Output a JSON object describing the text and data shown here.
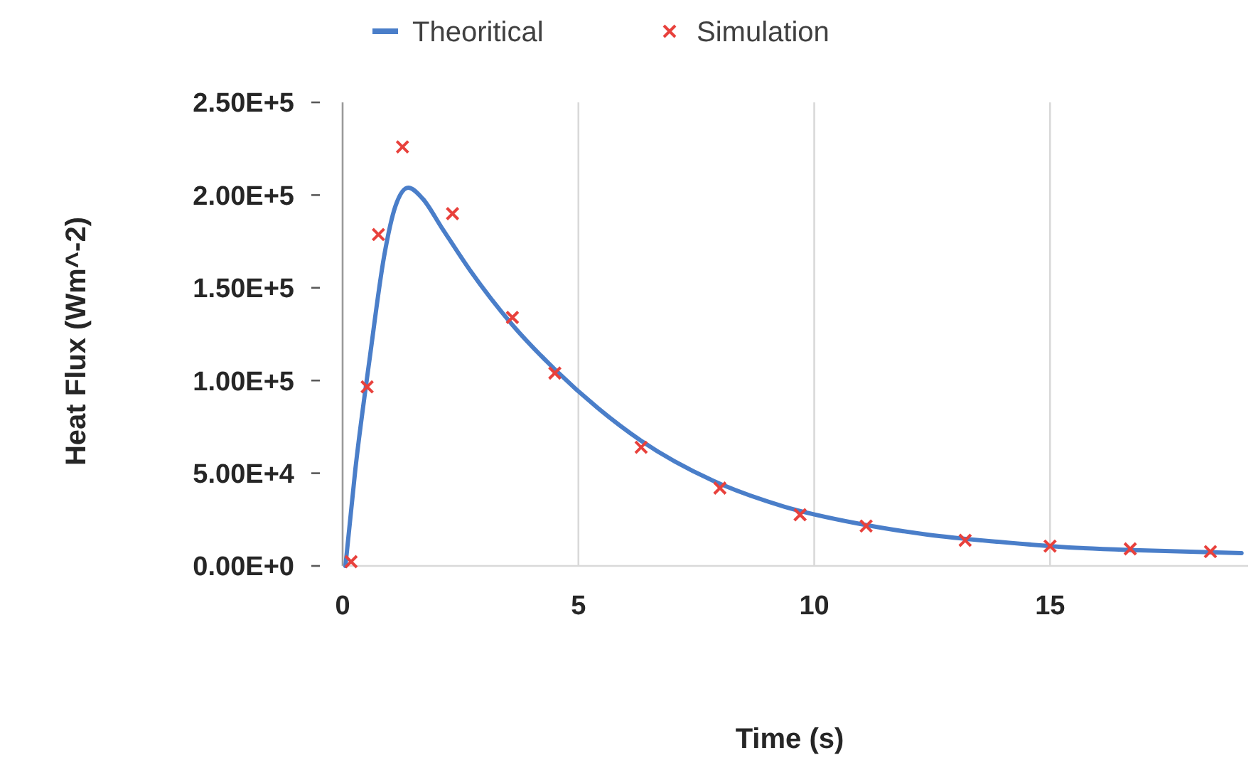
{
  "chart_data": {
    "type": "line",
    "xlabel": "Time (s)",
    "ylabel": "Heat Flux (Wm^-2)",
    "xlim": [
      0,
      19.2
    ],
    "xticks": [
      0,
      5,
      10,
      15
    ],
    "ylim": [
      0,
      250000
    ],
    "yticks": [
      {
        "value": 0,
        "label": "0.00E+0"
      },
      {
        "value": 50000,
        "label": "5.00E+4"
      },
      {
        "value": 100000,
        "label": "1.00E+5"
      },
      {
        "value": 150000,
        "label": "1.50E+5"
      },
      {
        "value": 200000,
        "label": "2.00E+5"
      },
      {
        "value": 250000,
        "label": "2.50E+5"
      }
    ],
    "grid": "x",
    "legend": "top",
    "series": [
      {
        "name": "Theoritical",
        "color": "#4a7ec9",
        "marker": "none",
        "line_style": "solid",
        "x": [
          0.06,
          0.27,
          0.58,
          0.88,
          1.12,
          1.39,
          1.7,
          2.1,
          2.7,
          3.6,
          4.5,
          5.42,
          6.33,
          7.85,
          9.36,
          10.9,
          12.4,
          13.9,
          15.4,
          16.9,
          19.06
        ],
        "values": [
          0,
          52000,
          113000,
          167000,
          194000,
          204000,
          198000,
          182500,
          159500,
          130000,
          106000,
          85000,
          67500,
          46000,
          32000,
          23000,
          16900,
          13000,
          10000,
          8400,
          6900
        ]
      },
      {
        "name": "Simulation",
        "type": "scatter",
        "color": "#e8413c",
        "marker": "cross",
        "x": [
          0.18,
          0.52,
          0.76,
          1.27,
          2.33,
          3.6,
          4.5,
          6.33,
          8.0,
          9.7,
          11.1,
          13.2,
          15.0,
          16.7,
          18.4
        ],
        "values": [
          2300,
          96600,
          178700,
          226000,
          190000,
          134000,
          104000,
          64000,
          42000,
          27600,
          21500,
          13800,
          10700,
          9200,
          7700
        ]
      }
    ]
  }
}
